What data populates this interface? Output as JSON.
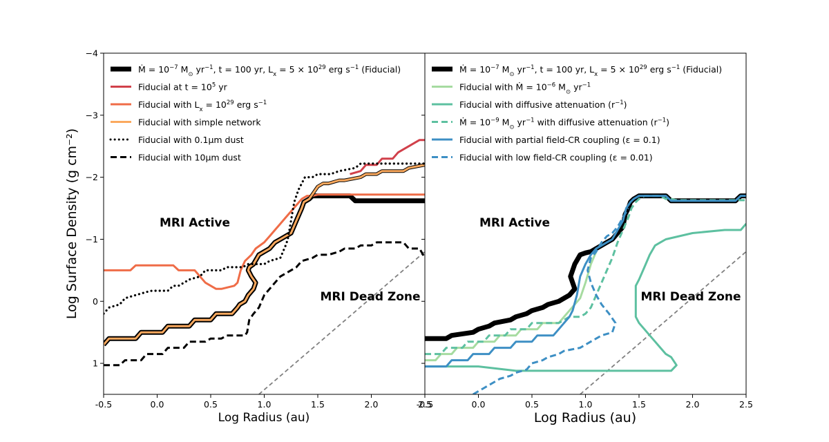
{
  "figure": {
    "ylabel": "Log Surface Density (g cm⁻²)"
  },
  "chart_data": [
    {
      "type": "line",
      "panel": "left",
      "xlabel": "Log Radius (au)",
      "ylabel": "Log Surface Density (g cm⁻²)",
      "xlim": [
        -0.5,
        2.5
      ],
      "ylim": [
        1.5,
        -4
      ],
      "x_ticks": [
        "-0.5",
        "0.0",
        "0.5",
        "1.0",
        "1.5",
        "2.0",
        "2.5"
      ],
      "y_ticks": [
        "1",
        "0",
        "−1",
        "−2",
        "−3",
        "−4"
      ],
      "y_tick_values": [
        1,
        0,
        -1,
        -2,
        -3,
        -4
      ],
      "annotations": [
        {
          "text": "MRI Active",
          "x": 0.35,
          "y": -1.27
        },
        {
          "text": "MRI Dead Zone",
          "x": 2.0,
          "y": 0.05
        }
      ],
      "reference_line": {
        "name": "MRI boundary",
        "color": "#808080",
        "x": [
          0.95,
          2.5
        ],
        "y": [
          1.5,
          -0.8
        ]
      },
      "series": [
        {
          "name": "fiducial",
          "legend": [
            "Ṁ = 10",
            "−7",
            " M",
            "⊙",
            " yr",
            "−1",
            ", t = 100 yr, L",
            "x",
            " = 5 × 10",
            "29",
            " erg s",
            "−1",
            " (Fiducial)"
          ],
          "color": "#000000",
          "style": "solid",
          "thick": true,
          "x": [
            -0.5,
            -0.45,
            -0.2,
            -0.15,
            0.05,
            0.1,
            0.3,
            0.35,
            0.5,
            0.55,
            0.7,
            0.75,
            0.77,
            0.82,
            0.85,
            0.9,
            0.92,
            0.88,
            0.85,
            0.86,
            0.9,
            0.95,
            1.0,
            1.05,
            1.1,
            1.15,
            1.25,
            1.3,
            1.35,
            1.37,
            1.42,
            1.45,
            1.5,
            1.8,
            1.85,
            2.5
          ],
          "y": [
            0.7,
            0.6,
            0.6,
            0.5,
            0.5,
            0.4,
            0.4,
            0.3,
            0.3,
            0.2,
            0.2,
            0.1,
            0.05,
            0,
            -0.1,
            -0.2,
            -0.3,
            -0.4,
            -0.5,
            -0.55,
            -0.6,
            -0.75,
            -0.8,
            -0.85,
            -0.95,
            -1.0,
            -1.1,
            -1.3,
            -1.5,
            -1.6,
            -1.65,
            -1.7,
            -1.7,
            -1.7,
            -1.62,
            -1.62
          ]
        },
        {
          "name": "t1e5",
          "legend": [
            "Fiducial at t = 10",
            "5",
            " yr"
          ],
          "color": "#d1404a",
          "style": "solid",
          "x": [
            1.8,
            1.9,
            1.95,
            2.05,
            2.1,
            2.2,
            2.25,
            2.3,
            2.35,
            2.4,
            2.45,
            2.5
          ],
          "y": [
            -2.05,
            -2.1,
            -2.2,
            -2.2,
            -2.3,
            -2.3,
            -2.4,
            -2.45,
            -2.5,
            -2.55,
            -2.6,
            -2.6
          ]
        },
        {
          "name": "lx1e29",
          "legend": [
            "Fiducial with L",
            "x",
            " = 10",
            "29",
            " erg s",
            "−1"
          ],
          "color": "#ef6c47",
          "style": "solid",
          "x": [
            -0.5,
            -0.25,
            -0.2,
            0.15,
            0.2,
            0.35,
            0.4,
            0.45,
            0.55,
            0.6,
            0.72,
            0.75,
            0.78,
            0.82,
            0.88,
            0.92,
            1.0,
            1.05,
            1.1,
            1.15,
            1.2,
            1.25,
            1.3,
            1.35,
            1.4,
            1.45,
            1.5,
            1.55,
            2.5
          ],
          "y": [
            -0.5,
            -0.5,
            -0.58,
            -0.58,
            -0.5,
            -0.5,
            -0.4,
            -0.3,
            -0.2,
            -0.2,
            -0.25,
            -0.3,
            -0.5,
            -0.65,
            -0.75,
            -0.85,
            -0.95,
            -1.05,
            -1.15,
            -1.25,
            -1.35,
            -1.45,
            -1.55,
            -1.65,
            -1.7,
            -1.7,
            -1.72,
            -1.72,
            -1.72
          ]
        },
        {
          "name": "simple_network",
          "legend": [
            "Fiducial with simple network"
          ],
          "color": "#fba95e",
          "style": "solid",
          "x": [
            -0.5,
            -0.45,
            -0.2,
            -0.15,
            0.05,
            0.1,
            0.3,
            0.35,
            0.5,
            0.55,
            0.7,
            0.75,
            0.77,
            0.82,
            0.85,
            0.9,
            0.92,
            0.88,
            0.85,
            0.86,
            0.9,
            0.95,
            1.0,
            1.05,
            1.1,
            1.15,
            1.25,
            1.3,
            1.35,
            1.37,
            1.42,
            1.5,
            1.55,
            1.6,
            1.7,
            1.75,
            1.9,
            1.95,
            2.05,
            2.1,
            2.3,
            2.35,
            2.5
          ],
          "y": [
            0.7,
            0.6,
            0.6,
            0.5,
            0.5,
            0.4,
            0.4,
            0.3,
            0.3,
            0.2,
            0.2,
            0.1,
            0.05,
            0,
            -0.1,
            -0.2,
            -0.3,
            -0.4,
            -0.5,
            -0.55,
            -0.6,
            -0.75,
            -0.8,
            -0.85,
            -0.95,
            -1.0,
            -1.1,
            -1.3,
            -1.5,
            -1.6,
            -1.65,
            -1.85,
            -1.9,
            -1.9,
            -1.95,
            -1.95,
            -2.0,
            -2.05,
            -2.05,
            -2.1,
            -2.1,
            -2.15,
            -2.2
          ]
        },
        {
          "name": "dust_0p1",
          "legend": [
            "Fiducial with 0.1",
            "μ",
            "m dust"
          ],
          "color": "#000000",
          "style": "dotted",
          "x": [
            -0.5,
            -0.45,
            -0.35,
            -0.3,
            -0.2,
            -0.1,
            -0.05,
            0.1,
            0.15,
            0.2,
            0.25,
            0.3,
            0.4,
            0.45,
            0.6,
            0.65,
            0.8,
            0.85,
            1.0,
            1.05,
            1.15,
            1.2,
            1.22,
            1.25,
            1.28,
            1.32,
            1.35,
            1.38,
            1.45,
            1.5,
            1.55,
            1.62,
            1.7,
            1.85,
            1.9,
            2.5
          ],
          "y": [
            0.2,
            0.1,
            0.05,
            -0.05,
            -0.1,
            -0.15,
            -0.17,
            -0.17,
            -0.25,
            -0.25,
            -0.3,
            -0.35,
            -0.4,
            -0.5,
            -0.5,
            -0.55,
            -0.55,
            -0.6,
            -0.6,
            -0.65,
            -0.7,
            -0.9,
            -1.0,
            -1.3,
            -1.6,
            -1.8,
            -1.9,
            -2.0,
            -2.0,
            -2.05,
            -2.05,
            -2.05,
            -2.1,
            -2.15,
            -2.22,
            -2.22
          ]
        },
        {
          "name": "dust_10",
          "legend": [
            "Fiducial with 10",
            "μ",
            "m dust"
          ],
          "color": "#000000",
          "style": "dashed",
          "x": [
            -0.5,
            -0.35,
            -0.3,
            -0.15,
            -0.1,
            0.05,
            0.1,
            0.25,
            0.3,
            0.45,
            0.5,
            0.6,
            0.65,
            0.75,
            0.82,
            0.84,
            0.86,
            0.9,
            0.95,
            1.0,
            1.05,
            1.1,
            1.15,
            1.2,
            1.3,
            1.35,
            1.45,
            1.5,
            1.6,
            1.7,
            1.75,
            1.85,
            1.9,
            2.0,
            2.05,
            2.3,
            2.35,
            2.45,
            2.5
          ],
          "y": [
            1.03,
            1.03,
            0.95,
            0.95,
            0.85,
            0.85,
            0.75,
            0.75,
            0.65,
            0.65,
            0.6,
            0.6,
            0.55,
            0.55,
            0.55,
            0.5,
            0.3,
            0.2,
            0.1,
            -0.1,
            -0.2,
            -0.3,
            -0.4,
            -0.45,
            -0.55,
            -0.65,
            -0.7,
            -0.75,
            -0.75,
            -0.8,
            -0.85,
            -0.85,
            -0.9,
            -0.9,
            -0.95,
            -0.95,
            -0.85,
            -0.85,
            -0.7
          ]
        }
      ]
    },
    {
      "type": "line",
      "panel": "right",
      "xlabel": "Log Radius (au)",
      "xlim": [
        -0.5,
        2.5
      ],
      "ylim": [
        1.5,
        -4
      ],
      "x_ticks": [
        "-0.5",
        "0.0",
        "0.5",
        "1.0",
        "1.5",
        "2.0",
        "2.5"
      ],
      "annotations": [
        {
          "text": "MRI Active",
          "x": 0.35,
          "y": -1.27
        },
        {
          "text": "MRI Dead Zone",
          "x": 2.0,
          "y": 0.05
        }
      ],
      "reference_line": {
        "name": "MRI boundary",
        "color": "#808080",
        "x": [
          0.95,
          2.5
        ],
        "y": [
          1.5,
          -0.8
        ]
      },
      "series": [
        {
          "name": "fiducial",
          "legend": [
            "Ṁ = 10",
            "−7",
            " M",
            "⊙",
            " yr",
            "−1",
            ", t = 100 yr, L",
            "x",
            " = 5 × 10",
            "29",
            " erg s",
            "−1",
            " (Fiducial)"
          ],
          "color": "#000000",
          "style": "solid",
          "thick": true,
          "x": [
            -0.5,
            -0.3,
            -0.25,
            -0.05,
            0.0,
            0.1,
            0.15,
            0.3,
            0.35,
            0.45,
            0.5,
            0.6,
            0.65,
            0.75,
            0.8,
            0.85,
            0.9,
            0.88,
            0.86,
            0.88,
            0.9,
            0.95,
            1.0,
            1.05,
            1.1,
            1.15,
            1.2,
            1.25,
            1.3,
            1.35,
            1.37,
            1.4,
            1.42,
            1.45,
            1.5,
            1.75,
            1.8,
            2.4,
            2.45,
            2.5
          ],
          "y": [
            0.6,
            0.6,
            0.55,
            0.5,
            0.45,
            0.4,
            0.35,
            0.3,
            0.25,
            0.2,
            0.15,
            0.1,
            0.05,
            0,
            -0.05,
            -0.1,
            -0.2,
            -0.3,
            -0.4,
            -0.5,
            -0.6,
            -0.75,
            -0.78,
            -0.8,
            -0.85,
            -0.9,
            -0.95,
            -1.0,
            -1.1,
            -1.2,
            -1.4,
            -1.5,
            -1.6,
            -1.65,
            -1.7,
            -1.7,
            -1.62,
            -1.62,
            -1.7,
            -1.7
          ]
        },
        {
          "name": "mdot1e-6",
          "legend": [
            "Fiducial with Ṁ = 10",
            "−6",
            " M",
            "⊙",
            " yr",
            "−1"
          ],
          "color": "#a6dba0",
          "style": "solid",
          "x": [
            -0.5,
            -0.4,
            -0.35,
            -0.25,
            -0.2,
            -0.05,
            0.0,
            0.15,
            0.2,
            0.35,
            0.4,
            0.55,
            0.6,
            0.75,
            0.8,
            0.85,
            0.9,
            0.95,
            1.0,
            1.05,
            1.1
          ],
          "y": [
            0.95,
            0.95,
            0.85,
            0.85,
            0.75,
            0.75,
            0.65,
            0.65,
            0.55,
            0.55,
            0.45,
            0.45,
            0.35,
            0.35,
            0.25,
            0.15,
            0.05,
            -0.05,
            -0.3,
            -0.6,
            -0.8
          ]
        },
        {
          "name": "diffusive",
          "legend": [
            "Fiducial with diffusive attenuation (r",
            "−1",
            ")"
          ],
          "color": "#5dc0a0",
          "style": "solid",
          "x": [
            -0.5,
            0.0,
            0.35,
            1.8,
            1.85,
            1.8,
            1.75,
            1.7,
            1.65,
            1.6,
            1.55,
            1.5,
            1.47,
            1.47,
            1.5,
            1.55,
            1.6,
            1.65,
            1.7,
            1.75,
            2.0,
            2.3,
            2.45,
            2.5
          ],
          "y": [
            1.05,
            1.05,
            1.12,
            1.12,
            1.03,
            0.9,
            0.85,
            0.75,
            0.65,
            0.55,
            0.45,
            0.35,
            0.25,
            -0.25,
            -0.35,
            -0.55,
            -0.75,
            -0.9,
            -0.95,
            -1.0,
            -1.1,
            -1.15,
            -1.15,
            -1.25
          ]
        },
        {
          "name": "mdot1e-9_diffusive",
          "legend": [
            "Ṁ = 10",
            "−9",
            " M",
            "⊙",
            " yr",
            "−1",
            " with diffusive attenuation (r",
            "−1",
            ")"
          ],
          "color": "#5dc0a0",
          "style": "dashed",
          "x": [
            -0.5,
            -0.35,
            -0.3,
            -0.15,
            -0.1,
            0.05,
            0.1,
            0.25,
            0.3,
            0.45,
            0.5,
            0.75,
            0.8,
            0.85,
            0.9,
            0.95,
            1.0,
            1.05,
            1.1,
            1.15,
            1.2,
            1.25,
            1.3,
            1.35,
            1.4,
            1.43,
            1.47,
            1.5,
            1.55,
            1.6,
            1.65,
            1.7,
            1.75,
            1.8,
            1.85,
            2.0,
            2.5
          ],
          "y": [
            0.85,
            0.85,
            0.75,
            0.75,
            0.65,
            0.65,
            0.55,
            0.55,
            0.45,
            0.45,
            0.35,
            0.35,
            0.3,
            0.25,
            0.25,
            0.25,
            0.2,
            0.1,
            -0.1,
            -0.3,
            -0.5,
            -0.7,
            -0.95,
            -1.15,
            -1.35,
            -1.5,
            -1.6,
            -1.65,
            -1.7,
            -1.7,
            -1.7,
            -1.7,
            -1.65,
            -1.65,
            -1.63,
            -1.63,
            -1.63
          ]
        },
        {
          "name": "partial_coupling",
          "legend": [
            "Fiducial with partial field-CR coupling (",
            "ε",
            " = 0.1)"
          ],
          "color": "#3d8fc4",
          "style": "solid",
          "x": [
            -0.5,
            -0.3,
            -0.25,
            -0.1,
            -0.05,
            0.1,
            0.15,
            0.3,
            0.35,
            0.5,
            0.55,
            0.7,
            0.75,
            0.8,
            0.85,
            0.88,
            0.92,
            0.95,
            1.0,
            1.05,
            1.1,
            1.15,
            1.2,
            1.25,
            1.3,
            1.35,
            1.38,
            1.42,
            1.45,
            1.5,
            1.75,
            1.8,
            2.4,
            2.45,
            2.5
          ],
          "y": [
            1.05,
            1.05,
            0.95,
            0.95,
            0.85,
            0.85,
            0.75,
            0.75,
            0.65,
            0.65,
            0.55,
            0.55,
            0.45,
            0.35,
            0.25,
            0.15,
            -0.1,
            -0.4,
            -0.6,
            -0.75,
            -0.85,
            -0.9,
            -0.95,
            -1.0,
            -1.15,
            -1.3,
            -1.5,
            -1.6,
            -1.65,
            -1.7,
            -1.7,
            -1.62,
            -1.62,
            -1.7,
            -1.7
          ]
        },
        {
          "name": "low_coupling",
          "legend": [
            "Fiducial with low field-CR coupling (",
            "ε",
            " = 0.01)"
          ],
          "color": "#3d8fc4",
          "style": "dashed",
          "x": [
            -0.05,
            0.05,
            0.1,
            0.15,
            0.2,
            0.3,
            0.35,
            0.45,
            0.5,
            0.6,
            0.65,
            0.75,
            0.8,
            0.95,
            1.0,
            1.1,
            1.15,
            1.25,
            1.28,
            1.22,
            1.15,
            1.1,
            1.05,
            1.02,
            1.05,
            1.1,
            1.15,
            1.2,
            1.25,
            1.3,
            1.35,
            1.4
          ],
          "y": [
            1.5,
            1.4,
            1.35,
            1.3,
            1.25,
            1.2,
            1.15,
            1.1,
            1.0,
            0.95,
            0.9,
            0.85,
            0.8,
            0.75,
            0.7,
            0.6,
            0.55,
            0.5,
            0.35,
            0.2,
            0.05,
            -0.1,
            -0.3,
            -0.5,
            -0.7,
            -0.8,
            -0.95,
            -1.05,
            -1.1,
            -1.2,
            -1.35,
            -1.5
          ]
        }
      ]
    }
  ]
}
